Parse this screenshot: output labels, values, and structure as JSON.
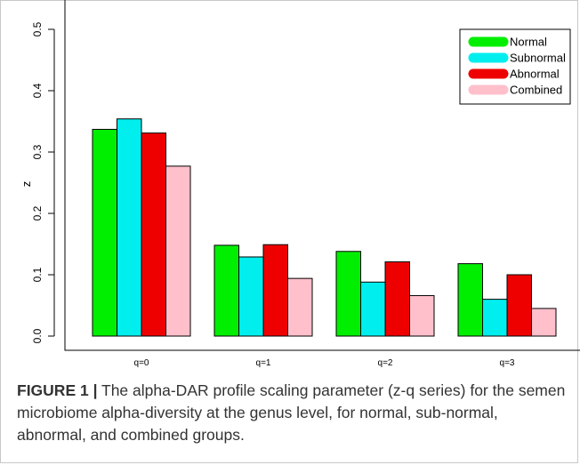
{
  "figure": {
    "label": "FIGURE 1 |",
    "caption": " The alpha-DAR profile scaling parameter (z-q series) for the semen microbiome alpha-diversity at the genus level, for normal, sub-normal, abnormal, and combined groups."
  },
  "chart_data": {
    "type": "bar",
    "categories": [
      "q=0",
      "q=1",
      "q=2",
      "q=3"
    ],
    "series": [
      {
        "name": "Normal",
        "color": "#00ee00",
        "values": [
          0.337,
          0.148,
          0.138,
          0.118
        ]
      },
      {
        "name": "Subnormal",
        "color": "#00eeee",
        "values": [
          0.354,
          0.129,
          0.088,
          0.06
        ]
      },
      {
        "name": "Abnormal",
        "color": "#ee0000",
        "values": [
          0.331,
          0.149,
          0.121,
          0.1
        ]
      },
      {
        "name": "Combined",
        "color": "#ffc0cb",
        "values": [
          0.277,
          0.094,
          0.066,
          0.045
        ]
      }
    ],
    "ylabel": "z",
    "xlabel": "",
    "ylim": [
      0,
      0.5
    ],
    "yticks": [
      "0.0",
      "0.1",
      "0.2",
      "0.3",
      "0.4",
      "0.5"
    ],
    "legend_position": "top-right",
    "grid": false
  }
}
